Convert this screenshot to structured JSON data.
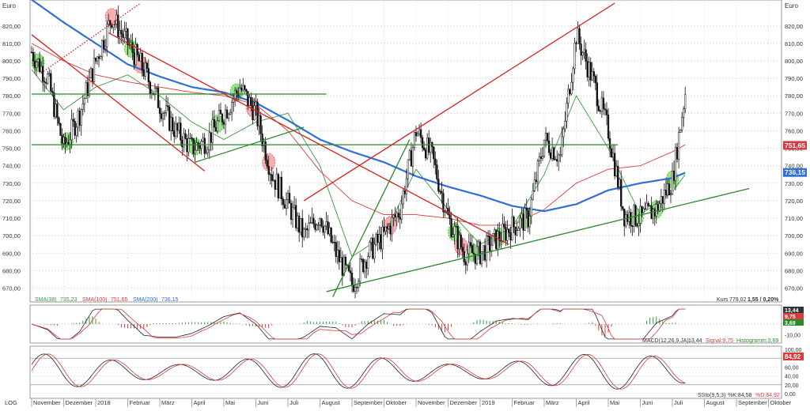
{
  "chart_data": {
    "type": "candlestick",
    "unit": "Euro",
    "scale": "LOG",
    "price_axis": {
      "ticks": [
        "820,00",
        "810,00",
        "800,00",
        "790,00",
        "780,00",
        "770,00",
        "760,00",
        "750,00",
        "740,00",
        "730,00",
        "720,00",
        "710,00",
        "700,00",
        "690,00",
        "680,00",
        "670,00"
      ],
      "tick_values": [
        820,
        810,
        800,
        790,
        780,
        770,
        760,
        750,
        740,
        730,
        720,
        710,
        700,
        690,
        680,
        670
      ],
      "ylim": [
        663,
        833
      ]
    },
    "time_axis": {
      "labels": [
        "November",
        "Dezember",
        "2018",
        "Februar",
        "März",
        "April",
        "Mai",
        "Juni",
        "Juli",
        "August",
        "September",
        "Oktober",
        "November",
        "Dezember",
        "2019",
        "Februar",
        "März",
        "April",
        "Mai",
        "Juni",
        "Juli",
        "August",
        "September",
        "Oktober"
      ],
      "positions": [
        0,
        1,
        2,
        3,
        4,
        5,
        6,
        7,
        8,
        9,
        10,
        11,
        12,
        13,
        14,
        15,
        16,
        17,
        18,
        19,
        20,
        21,
        22,
        23
      ]
    },
    "price_series": {
      "name": "Kurs",
      "months": [
        0,
        0.5,
        1,
        1.5,
        2,
        2.5,
        3,
        3.5,
        4,
        4.5,
        5,
        5.5,
        6,
        6.5,
        7,
        7.5,
        8,
        8.5,
        9,
        9.5,
        10,
        10.5,
        11,
        11.5,
        12,
        12.5,
        13,
        13.5,
        14,
        14.5,
        15,
        15.5,
        16,
        16.5,
        17,
        17.5,
        18,
        18.5,
        19,
        19.5,
        20,
        20.4
      ],
      "close": [
        805,
        790,
        750,
        770,
        800,
        825,
        810,
        795,
        775,
        760,
        750,
        755,
        770,
        785,
        770,
        735,
        718,
        700,
        712,
        690,
        672,
        690,
        700,
        715,
        760,
        745,
        710,
        690,
        690,
        698,
        705,
        710,
        755,
        745,
        815,
        790,
        760,
        712,
        710,
        715,
        732,
        782
      ]
    },
    "indicators": [
      {
        "name": "SMA(38)",
        "value": "735,23",
        "color": "#3a9a3a",
        "months": [
          0,
          1,
          2,
          3,
          4,
          5,
          6,
          7,
          8,
          9,
          10,
          11,
          12,
          13,
          14,
          15,
          16,
          17,
          18,
          19,
          20,
          20.4
        ],
        "values": [
          795,
          772,
          785,
          792,
          780,
          765,
          755,
          765,
          770,
          740,
          688,
          700,
          738,
          715,
          695,
          705,
          735,
          780,
          750,
          712,
          725,
          735
        ]
      },
      {
        "name": "SMA(100)",
        "value": "751,65",
        "color": "#d93c3c",
        "months": [
          0,
          1,
          2,
          3,
          4,
          5,
          6,
          7,
          8,
          9,
          10,
          11,
          12,
          13,
          14,
          15,
          16,
          17,
          18,
          19,
          20,
          20.4
        ],
        "values": [
          810,
          800,
          792,
          788,
          785,
          782,
          780,
          775,
          760,
          737,
          720,
          712,
          712,
          710,
          706,
          706,
          715,
          730,
          738,
          740,
          748,
          752
        ]
      },
      {
        "name": "SMA(200)",
        "value": "736,15",
        "color": "#2f6fd6",
        "months": [
          0,
          1,
          2,
          3,
          4,
          5,
          6,
          7,
          8,
          9,
          10,
          11,
          12,
          13,
          14,
          15,
          16,
          17,
          18,
          19,
          20,
          20.4
        ],
        "values": [
          835,
          822,
          810,
          798,
          791,
          785,
          782,
          776,
          766,
          755,
          748,
          742,
          734,
          728,
          723,
          717,
          714,
          718,
          726,
          730,
          733,
          736
        ]
      }
    ],
    "horizontal_lines": [
      {
        "y": 781,
        "from": 0,
        "to": 9.2,
        "color": "#2a8a2a"
      },
      {
        "y": 752,
        "from": 0,
        "to": 18.3,
        "color": "#2a8a2a"
      }
    ],
    "trendlines": [
      {
        "color": "#d82020",
        "from": [
          0,
          815
        ],
        "to": [
          5.4,
          737
        ]
      },
      {
        "color": "#d82020",
        "from": [
          2.4,
          816
        ],
        "to": [
          14.9,
          695
        ]
      },
      {
        "color": "#d82020",
        "from": [
          8.5,
          720
        ],
        "to": [
          18.2,
          833
        ]
      },
      {
        "color": "#d82020",
        "style": "dotted",
        "from": [
          0.3,
          793
        ],
        "to": [
          3.4,
          833
        ]
      },
      {
        "color": "#2a8a2a",
        "from": [
          5.1,
          742
        ],
        "to": [
          8.5,
          762
        ]
      },
      {
        "color": "#2a8a2a",
        "from": [
          9.4,
          665
        ],
        "to": [
          11.8,
          755
        ]
      },
      {
        "color": "#2a8a2a",
        "from": [
          9.2,
          668
        ],
        "to": [
          22.4,
          727
        ]
      }
    ],
    "markers": [
      {
        "color": "red",
        "months": [
          2.5,
          3.4,
          6.9,
          7.4,
          11.2,
          13.4
        ]
      },
      {
        "color": "green",
        "months": [
          0.2,
          1.1,
          3.1,
          5.1,
          5.8,
          6.4,
          13.2,
          13.8,
          14.6,
          15.4,
          18.9,
          19.5,
          20
        ]
      }
    ],
    "current": {
      "label": "Kurs",
      "value": "779,02",
      "change": "1,55 / 0,20%"
    },
    "macd": {
      "name": "MACD(12,26,9,JA)",
      "macd": "13,44",
      "signal": "Signal:9,75",
      "histogram": "Histogramm:3,69",
      "axis_ticks": [
        "10,00",
        "-10,00"
      ],
      "axis_values": [
        10,
        -10
      ],
      "badges": [
        {
          "text": "13,44",
          "color": "#333333"
        },
        {
          "text": "9,75",
          "color": "#d93c3c"
        },
        {
          "text": "3,69",
          "color": "#2a8a2a"
        }
      ]
    },
    "stochastic": {
      "name": "SSto(9,5,3)",
      "k": "%K:84,58",
      "d": "%D:84,92",
      "axis_ticks": [
        "100,00",
        "60,00",
        "40,00",
        "20,00",
        "0,00"
      ],
      "axis_values": [
        100,
        60,
        40,
        20,
        0
      ],
      "badge": "84,92"
    }
  }
}
